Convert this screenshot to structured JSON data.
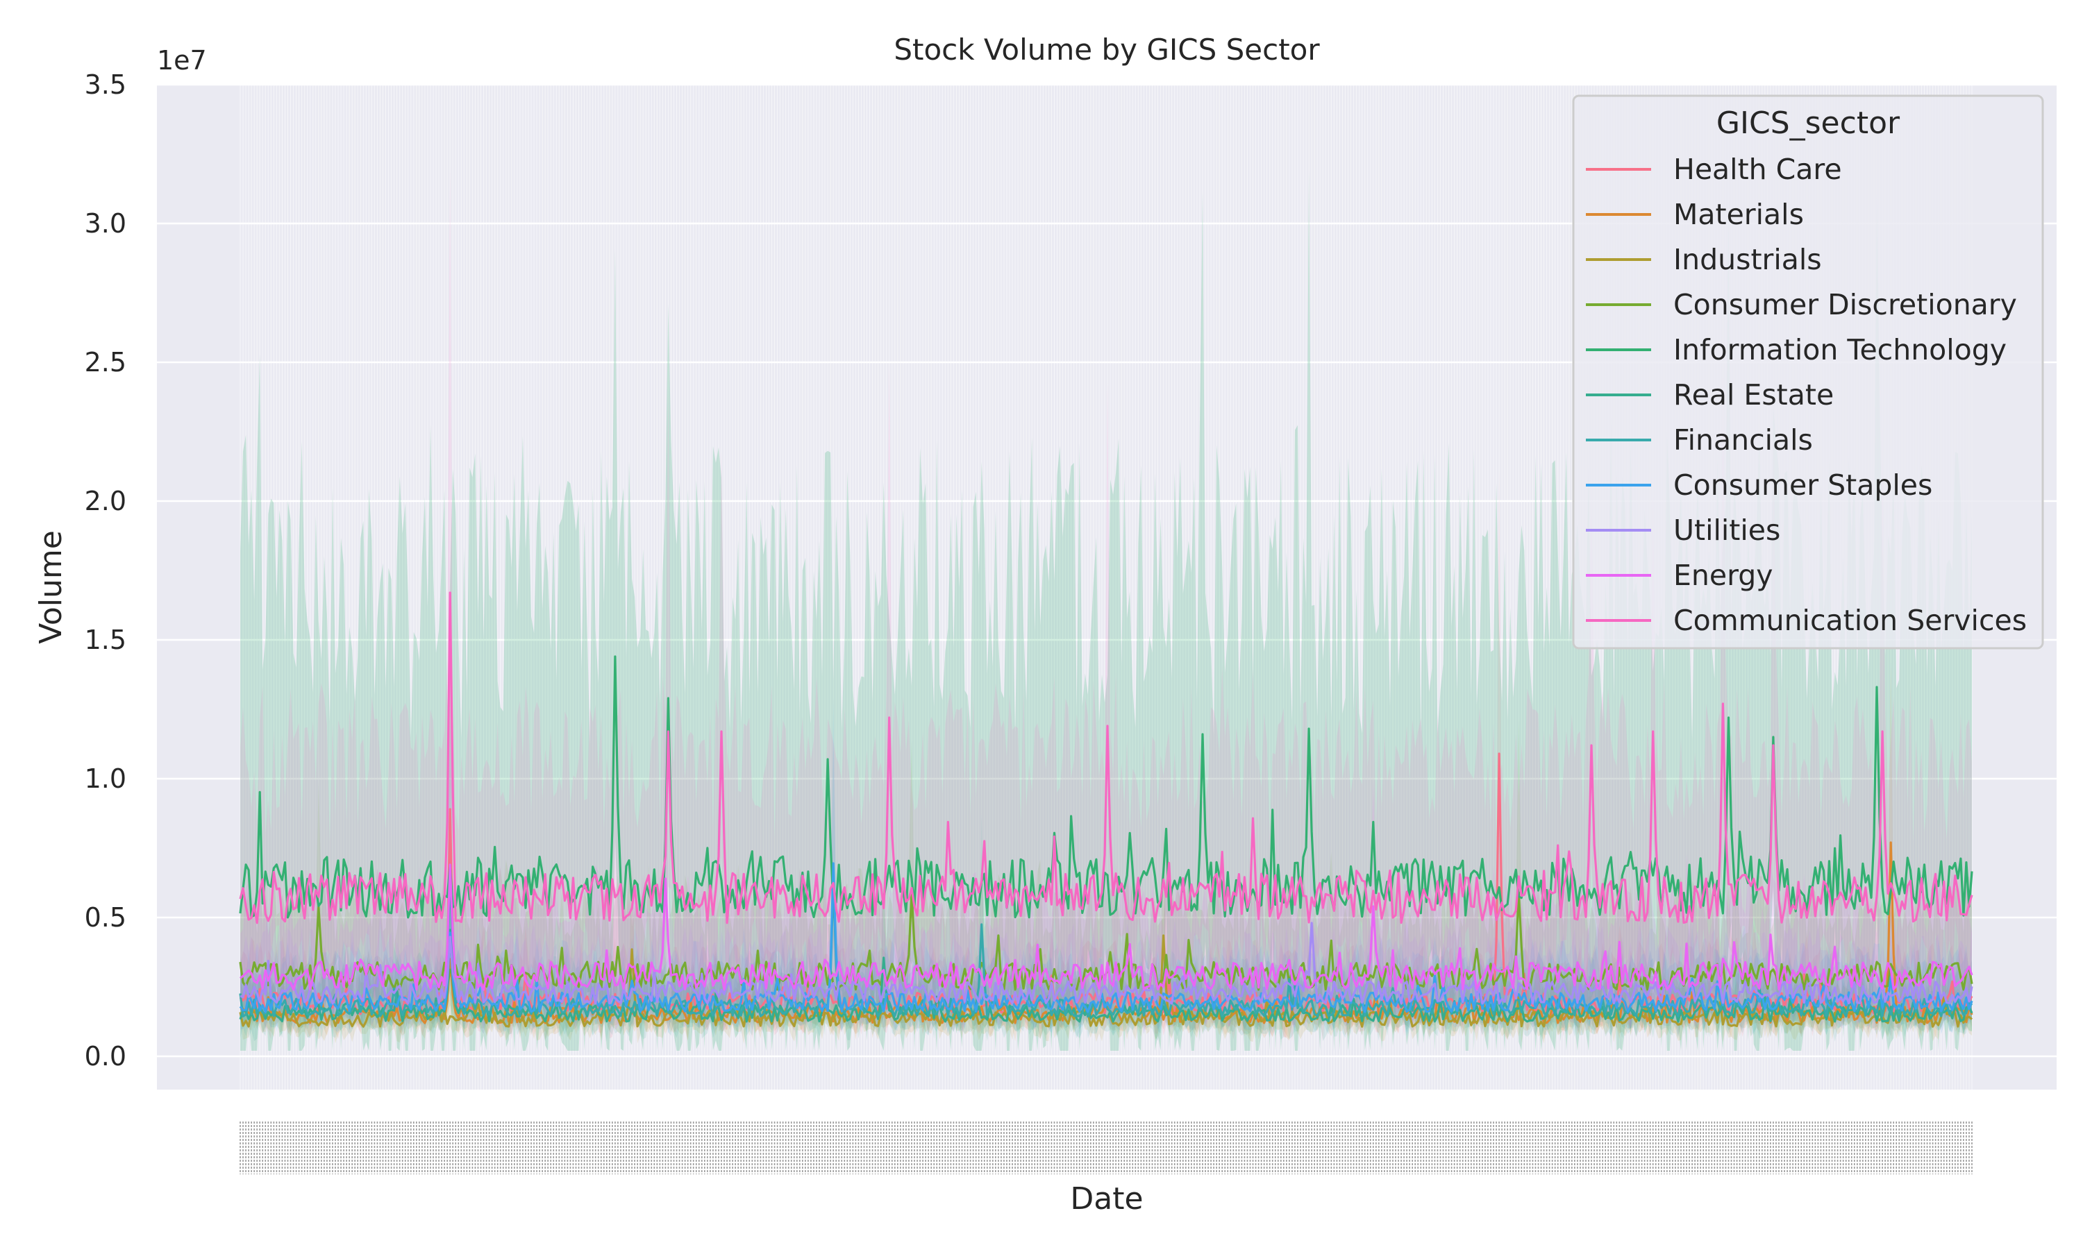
{
  "chart_data": {
    "type": "line",
    "title": "Stock Volume by GICS Sector",
    "xlabel": "Date",
    "ylabel": "Volume",
    "y_scale_label": "1e7",
    "ylim": [
      -1200000,
      35000000
    ],
    "yticks": [
      0,
      5000000,
      10000000,
      15000000,
      20000000,
      25000000,
      30000000,
      35000000
    ],
    "ytick_labels": [
      "0.0",
      "0.5",
      "1.0",
      "1.5",
      "2.0",
      "2.5",
      "3.0",
      "3.5"
    ],
    "grid": true,
    "legend_title": "GICS_sector",
    "legend_position": "top-right",
    "n_dates": 620,
    "series": [
      {
        "name": "Health Care",
        "color": "#f77189",
        "typical": 1900000,
        "noise": 380000,
        "band_width": 1500000,
        "spikes": [
          [
            75,
            7000000
          ],
          [
            450,
            9000000
          ],
          [
            745,
            5000000
          ]
        ]
      },
      {
        "name": "Materials",
        "color": "#dc8932",
        "typical": 1500000,
        "noise": 300000,
        "band_width": 1000000,
        "spikes": [
          [
            75,
            2000000
          ],
          [
            590,
            6200000
          ]
        ]
      },
      {
        "name": "Industrials",
        "color": "#ae9d31",
        "typical": 1350000,
        "noise": 280000,
        "band_width": 1000000,
        "spikes": [
          [
            140,
            2500000
          ],
          [
            330,
            3000000
          ]
        ]
      },
      {
        "name": "Consumer Discretionary",
        "color": "#77ab31",
        "typical": 2900000,
        "noise": 500000,
        "band_width": 2500000,
        "spikes": [
          [
            28,
            2500000
          ],
          [
            240,
            3000000
          ],
          [
            457,
            3000000
          ]
        ]
      },
      {
        "name": "Information Technology",
        "color": "#33b072",
        "typical": 6100000,
        "noise": 1100000,
        "band_width": 11000000,
        "spikes": [
          [
            134,
            8300000
          ],
          [
            153,
            6800000
          ],
          [
            210,
            4600000
          ],
          [
            344,
            5500000
          ],
          [
            382,
            5700000
          ],
          [
            532,
            6100000
          ],
          [
            548,
            5400000
          ],
          [
            585,
            7200000
          ]
        ]
      },
      {
        "name": "Real Estate",
        "color": "#36ad8f",
        "typical": 1550000,
        "noise": 300000,
        "band_width": 1200000,
        "spikes": [
          [
            75,
            3000000
          ],
          [
            230,
            2000000
          ]
        ]
      },
      {
        "name": "Financials",
        "color": "#38aaac",
        "typical": 1750000,
        "noise": 320000,
        "band_width": 1300000,
        "spikes": [
          [
            75,
            5000000
          ],
          [
            212,
            4500000
          ],
          [
            265,
            3000000
          ]
        ]
      },
      {
        "name": "Consumer Staples",
        "color": "#3ba3ec",
        "typical": 1950000,
        "noise": 350000,
        "band_width": 1400000,
        "spikes": [
          [
            212,
            5000000
          ],
          [
            75,
            2500000
          ]
        ]
      },
      {
        "name": "Utilities",
        "color": "#a48cf4",
        "typical": 2300000,
        "noise": 400000,
        "band_width": 1600000,
        "spikes": [
          [
            75,
            2000000
          ],
          [
            383,
            2500000
          ]
        ]
      },
      {
        "name": "Energy",
        "color": "#e866f4",
        "typical": 2900000,
        "noise": 500000,
        "band_width": 2500000,
        "spikes": [
          [
            75,
            4000000
          ],
          [
            152,
            3500000
          ],
          [
            405,
            2500000
          ]
        ]
      },
      {
        "name": "Communication Services",
        "color": "#f668c2",
        "typical": 5700000,
        "noise": 900000,
        "band_width": 5000000,
        "spikes": [
          [
            75,
            11000000
          ],
          [
            153,
            6000000
          ],
          [
            172,
            6000000
          ],
          [
            232,
            6500000
          ],
          [
            310,
            6200000
          ],
          [
            483,
            5500000
          ],
          [
            505,
            6000000
          ],
          [
            530,
            7000000
          ],
          [
            548,
            5500000
          ],
          [
            587,
            6000000
          ]
        ]
      }
    ]
  }
}
